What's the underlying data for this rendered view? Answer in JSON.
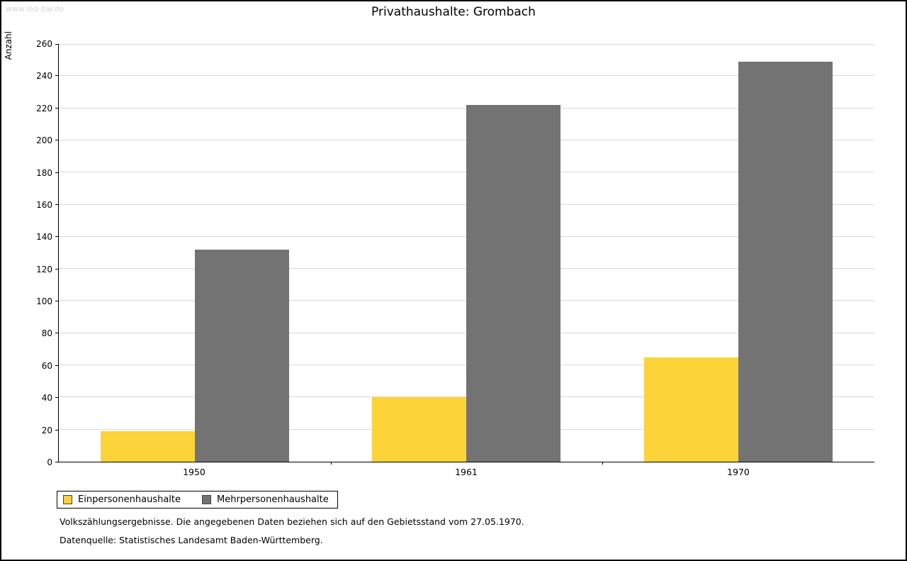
{
  "watermark": "www.leo-bw.de",
  "chart_data": {
    "type": "bar",
    "title": "Privathaushalte: Grombach",
    "xlabel": "",
    "ylabel": "Anzahl",
    "categories": [
      "1950",
      "1961",
      "1970"
    ],
    "series": [
      {
        "name": "Einpersonenhaushalte",
        "color": "#fcd338",
        "values": [
          19,
          40,
          65
        ]
      },
      {
        "name": "Mehrpersonenhaushalte",
        "color": "#737373",
        "values": [
          132,
          222,
          249
        ]
      }
    ],
    "ylim": [
      0,
      260
    ],
    "ytick_step": 20,
    "grid": true,
    "legend_position": "bottom-left"
  },
  "footnotes": [
    "Volkszählungsergebnisse. Die angegebenen Daten beziehen sich auf den Gebietsstand vom 27.05.1970.",
    "Datenquelle: Statistisches Landesamt Baden-Württemberg."
  ]
}
